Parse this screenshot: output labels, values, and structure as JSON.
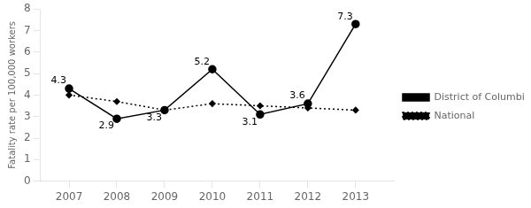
{
  "chart_data": {
    "type": "line",
    "x": [
      2007,
      2008,
      2009,
      2010,
      2011,
      2012,
      2013
    ],
    "series": [
      {
        "name": "District of Columbia",
        "color": "#000000",
        "marker": "circle",
        "line_style": "solid",
        "values": [
          4.3,
          2.9,
          3.3,
          5.2,
          3.1,
          3.6,
          7.3
        ]
      },
      {
        "name": "National",
        "color": "#000000",
        "marker": "diamond",
        "line_style": "dotted",
        "values": [
          4.0,
          3.7,
          3.3,
          3.6,
          3.5,
          3.4,
          3.3
        ]
      }
    ],
    "ylabel": "Fatality rate per 100,000 workers",
    "xlim": [
      2006.4,
      2013.8
    ],
    "xticks": [
      2007,
      2008,
      2009,
      2010,
      2011,
      2012,
      2013
    ],
    "ylim": [
      0,
      8
    ],
    "yticks": [
      0,
      1,
      2,
      3,
      4,
      5,
      6,
      7,
      8
    ],
    "grid": false,
    "legend": "right",
    "annotations": [
      {
        "x": 2007,
        "y": 4.3,
        "text": "4.3"
      },
      {
        "x": 2008,
        "y": 2.9,
        "text": "2.9"
      },
      {
        "x": 2009,
        "y": 3.3,
        "text": "3.3"
      },
      {
        "x": 2010,
        "y": 5.2,
        "text": "5.2"
      },
      {
        "x": 2011,
        "y": 3.1,
        "text": "3.1"
      },
      {
        "x": 2012,
        "y": 3.6,
        "text": "3.6"
      },
      {
        "x": 2013,
        "y": 7.3,
        "text": "7.3"
      }
    ]
  }
}
